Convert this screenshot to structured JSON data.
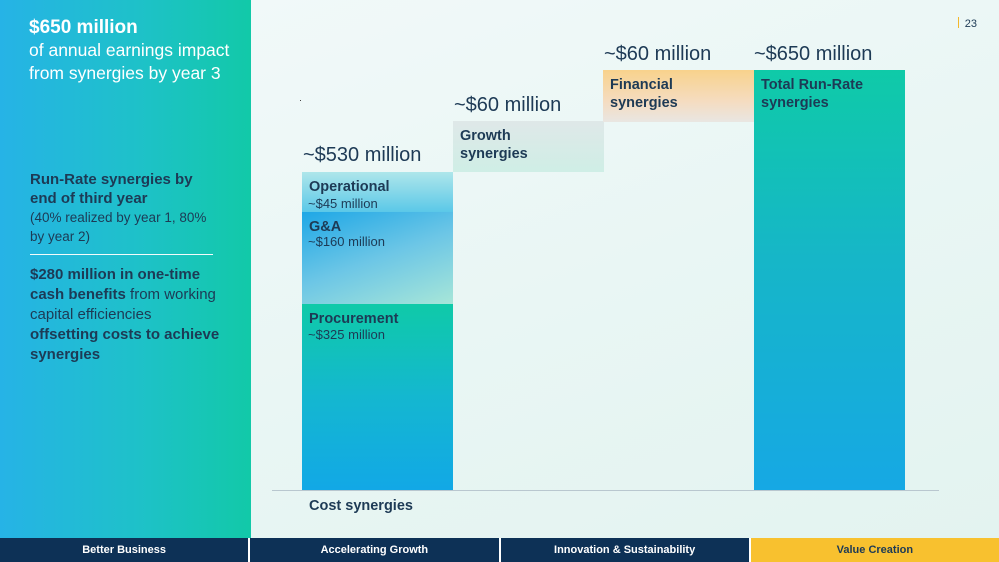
{
  "headline": {
    "amount": "$650 million",
    "text": "of annual earnings impact from synergies by year 3"
  },
  "side": {
    "runrate_title": "Run-Rate synergies by end of third year",
    "runrate_note": "(40% realized by year 1, 80% by year 2)",
    "cash_title": "$280 million in one-time cash benefits",
    "cash_text_1": "from working capital efficiencies",
    "cash_text_2": "offsetting costs to achieve synergies"
  },
  "page_number": "23",
  "bars": {
    "cost": {
      "label": "~$530 million"
    },
    "growth": {
      "label": "~$60 million",
      "title": "Growth synergies"
    },
    "financial": {
      "label": "~$60 million",
      "title": "Financial synergies"
    },
    "total": {
      "label": "~$650 million",
      "title": "Total Run-Rate synergies"
    }
  },
  "segments": {
    "operational": {
      "title": "Operational",
      "value": "~$45 million"
    },
    "ga": {
      "title": "G&A",
      "value": "~$160 million"
    },
    "procurement": {
      "title": "Procurement",
      "value": "~$325 million"
    }
  },
  "x_label": "Cost synergies",
  "footer": {
    "tabs": [
      "Better Business",
      "Accelerating Growth",
      "Innovation & Sustainability",
      "Value Creation"
    ],
    "active": "Value Creation"
  },
  "colors": {
    "navy": "#0d3156",
    "accent": "#f8c12f",
    "text": "#1d3a55"
  }
}
